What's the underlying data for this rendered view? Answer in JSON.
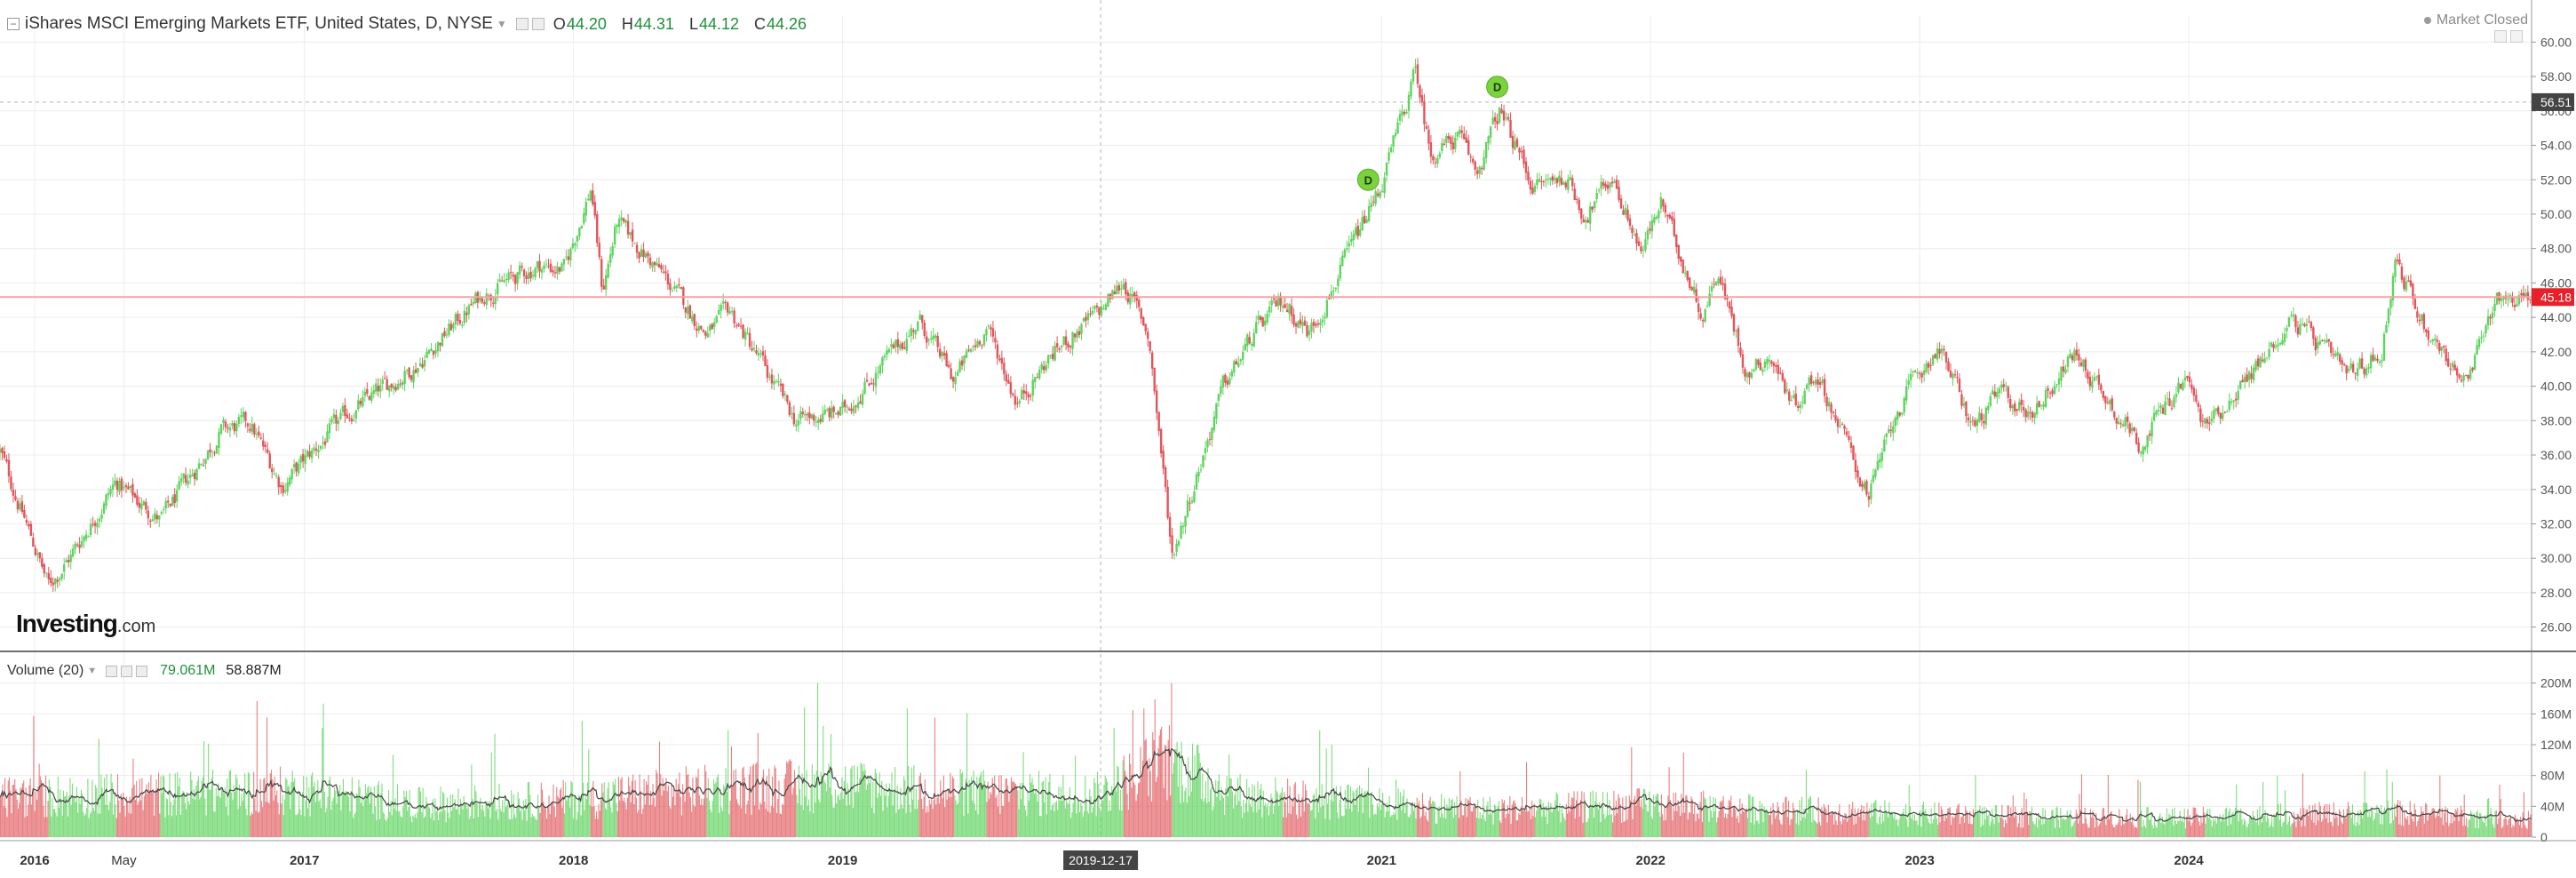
{
  "header": {
    "title": "iShares MSCI Emerging Markets ETF, United States, D, NYSE",
    "ohlc": [
      {
        "key": "O",
        "value": "44.20"
      },
      {
        "key": "H",
        "value": "44.31"
      },
      {
        "key": "L",
        "value": "44.12"
      },
      {
        "key": "C",
        "value": "44.26"
      }
    ],
    "market_status": "Market Closed"
  },
  "volume_legend": {
    "title": "Volume (20)",
    "value1": "79.061M",
    "value2": "58.887M"
  },
  "logo": {
    "name": "Investing",
    "suffix": ".com"
  },
  "colors": {
    "up": "#5fd35f",
    "down": "#e0555a",
    "grid": "#ececec",
    "current_line": "#f4a3a3",
    "price_badge": "#e8202a",
    "crosshair_badge": "#444444",
    "dividend_marker": "#7ad33d",
    "ma_line": "#444444"
  },
  "chart_data": [
    {
      "type": "candlestick",
      "ylim": [
        25,
        61
      ],
      "y_ticks": [
        "60.00",
        "58.00",
        "56.00",
        "54.00",
        "52.00",
        "50.00",
        "48.00",
        "46.00",
        "44.00",
        "42.00",
        "40.00",
        "38.00",
        "36.00",
        "34.00",
        "32.00",
        "30.00",
        "28.00",
        "26.00"
      ],
      "x_range": [
        "2015-11-15",
        "2025-04-10"
      ],
      "x_ticks": [
        {
          "label": "2016",
          "date": "2016-01-01",
          "bold": true
        },
        {
          "label": "May",
          "date": "2016-05-01",
          "bold": false
        },
        {
          "label": "2017",
          "date": "2017-01-01",
          "bold": true
        },
        {
          "label": "2018",
          "date": "2018-01-01",
          "bold": true
        },
        {
          "label": "2019",
          "date": "2019-01-01",
          "bold": true
        },
        {
          "label": "2021",
          "date": "2021-01-01",
          "bold": true
        },
        {
          "label": "2022",
          "date": "2022-01-01",
          "bold": true
        },
        {
          "label": "2023",
          "date": "2023-01-01",
          "bold": true
        },
        {
          "label": "2024",
          "date": "2024-01-01",
          "bold": true
        }
      ],
      "crosshair": {
        "date": "2019-12-17",
        "label": "2019-12-17",
        "price": 56.51,
        "price_label": "56.51"
      },
      "current_price": {
        "value": 45.18,
        "label": "45.18"
      },
      "grid": true,
      "price_path": [
        {
          "date": "2015-11-15",
          "close": 36.2
        },
        {
          "date": "2016-01-20",
          "close": 28.4
        },
        {
          "date": "2016-02-20",
          "close": 30.2
        },
        {
          "date": "2016-04-20",
          "close": 34.4
        },
        {
          "date": "2016-06-20",
          "close": 32.2
        },
        {
          "date": "2016-09-10",
          "close": 37.4
        },
        {
          "date": "2016-10-20",
          "close": 37.8
        },
        {
          "date": "2016-12-01",
          "close": 34.2
        },
        {
          "date": "2017-03-01",
          "close": 38.4
        },
        {
          "date": "2017-06-01",
          "close": 41.2
        },
        {
          "date": "2017-09-01",
          "close": 45.4
        },
        {
          "date": "2017-11-15",
          "close": 47.0
        },
        {
          "date": "2017-12-20",
          "close": 46.8
        },
        {
          "date": "2018-01-25",
          "close": 51.6
        },
        {
          "date": "2018-02-09",
          "close": 45.5
        },
        {
          "date": "2018-03-01",
          "close": 49.5
        },
        {
          "date": "2018-05-01",
          "close": 46.5
        },
        {
          "date": "2018-07-01",
          "close": 43.0
        },
        {
          "date": "2018-08-01",
          "close": 44.4
        },
        {
          "date": "2018-10-29",
          "close": 38.0
        },
        {
          "date": "2019-01-01",
          "close": 38.5
        },
        {
          "date": "2019-04-15",
          "close": 43.8
        },
        {
          "date": "2019-06-01",
          "close": 40.4
        },
        {
          "date": "2019-07-15",
          "close": 43.5
        },
        {
          "date": "2019-08-26",
          "close": 39.1
        },
        {
          "date": "2019-10-15",
          "close": 42.0
        },
        {
          "date": "2019-12-17",
          "close": 44.4
        },
        {
          "date": "2020-01-17",
          "close": 46.1
        },
        {
          "date": "2020-02-20",
          "close": 43.0
        },
        {
          "date": "2020-03-23",
          "close": 30.2
        },
        {
          "date": "2020-06-01",
          "close": 40.0
        },
        {
          "date": "2020-07-15",
          "close": 43.2
        },
        {
          "date": "2020-08-20",
          "close": 45.0
        },
        {
          "date": "2020-09-25",
          "close": 43.1
        },
        {
          "date": "2020-11-10",
          "close": 47.0
        },
        {
          "date": "2020-12-31",
          "close": 51.6
        },
        {
          "date": "2021-02-17",
          "close": 58.3
        },
        {
          "date": "2021-03-08",
          "close": 53.5
        },
        {
          "date": "2021-04-15",
          "close": 54.5
        },
        {
          "date": "2021-05-10",
          "close": 52.4
        },
        {
          "date": "2021-06-10",
          "close": 56.0
        },
        {
          "date": "2021-07-27",
          "close": 51.6
        },
        {
          "date": "2021-09-08",
          "close": 52.2
        },
        {
          "date": "2021-10-04",
          "close": 49.9
        },
        {
          "date": "2021-11-10",
          "close": 52.2
        },
        {
          "date": "2021-12-20",
          "close": 47.8
        },
        {
          "date": "2022-01-15",
          "close": 50.6
        },
        {
          "date": "2022-03-14",
          "close": 44.1
        },
        {
          "date": "2022-04-01",
          "close": 46.8
        },
        {
          "date": "2022-05-12",
          "close": 40.8
        },
        {
          "date": "2022-06-10",
          "close": 41.8
        },
        {
          "date": "2022-07-15",
          "close": 39.0
        },
        {
          "date": "2022-08-15",
          "close": 40.8
        },
        {
          "date": "2022-10-24",
          "close": 33.6
        },
        {
          "date": "2022-12-01",
          "close": 38.6
        },
        {
          "date": "2023-01-26",
          "close": 42.4
        },
        {
          "date": "2023-03-15",
          "close": 37.6
        },
        {
          "date": "2023-04-20",
          "close": 39.6
        },
        {
          "date": "2023-05-31",
          "close": 38.4
        },
        {
          "date": "2023-07-31",
          "close": 41.9
        },
        {
          "date": "2023-10-26",
          "close": 36.7
        },
        {
          "date": "2023-12-28",
          "close": 40.5
        },
        {
          "date": "2024-01-22",
          "close": 37.6
        },
        {
          "date": "2024-04-09",
          "close": 41.5
        },
        {
          "date": "2024-05-20",
          "close": 44.0
        },
        {
          "date": "2024-08-05",
          "close": 40.5
        },
        {
          "date": "2024-09-18",
          "close": 42.0
        },
        {
          "date": "2024-10-07",
          "close": 47.3
        },
        {
          "date": "2024-11-20",
          "close": 43.2
        },
        {
          "date": "2025-01-13",
          "close": 40.0
        },
        {
          "date": "2025-02-20",
          "close": 45.2
        },
        {
          "date": "2025-04-10",
          "close": 45.18
        }
      ],
      "dividend_markers": [
        {
          "date": "2020-12-14",
          "price": 52.0,
          "label": "D"
        },
        {
          "date": "2021-06-07",
          "price": 57.4,
          "label": "D"
        }
      ]
    },
    {
      "type": "bar",
      "title": "Volume (20)",
      "ylim": [
        0,
        210
      ],
      "unit": "M",
      "y_ticks": [
        "200M",
        "160M",
        "120M",
        "80M",
        "40M",
        "0"
      ],
      "volume_profile_millions": [
        {
          "date": "2015-11-15",
          "volume": 52
        },
        {
          "date": "2016-06-01",
          "volume": 55
        },
        {
          "date": "2016-12-15",
          "volume": 60
        },
        {
          "date": "2017-06-01",
          "volume": 42
        },
        {
          "date": "2017-12-15",
          "volume": 48
        },
        {
          "date": "2018-06-01",
          "volume": 60
        },
        {
          "date": "2018-12-15",
          "volume": 68
        },
        {
          "date": "2019-06-01",
          "volume": 58
        },
        {
          "date": "2019-12-15",
          "volume": 55
        },
        {
          "date": "2020-03-15",
          "volume": 100
        },
        {
          "date": "2020-06-15",
          "volume": 55
        },
        {
          "date": "2021-01-01",
          "volume": 42
        },
        {
          "date": "2021-06-01",
          "volume": 35
        },
        {
          "date": "2022-01-01",
          "volume": 42
        },
        {
          "date": "2022-06-01",
          "volume": 36
        },
        {
          "date": "2023-01-01",
          "volume": 30
        },
        {
          "date": "2023-06-01",
          "volume": 26
        },
        {
          "date": "2024-01-01",
          "volume": 25
        },
        {
          "date": "2024-10-01",
          "volume": 32
        },
        {
          "date": "2025-04-10",
          "volume": 22
        }
      ]
    }
  ]
}
